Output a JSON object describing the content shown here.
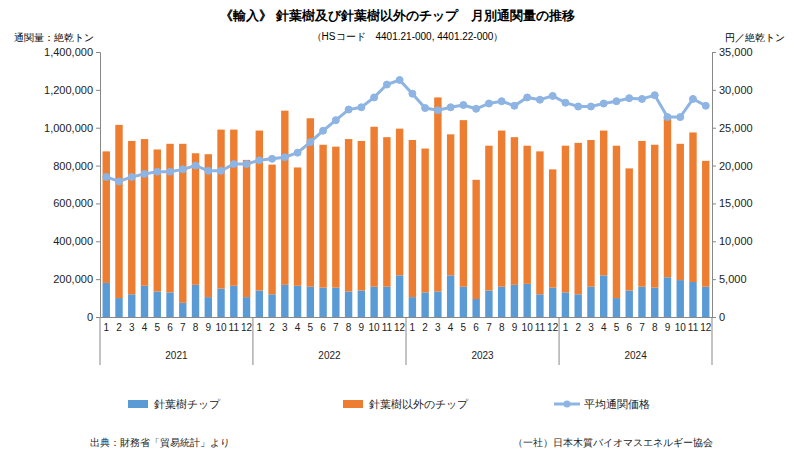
{
  "chart_data": {
    "type": "bar",
    "title": "《輸入》 針葉樹及び針葉樹以外のチップ　月別通関量の推移",
    "subtitle": "（HSコード　4401.21-000, 4401.22-000）",
    "y_label": "通関量：絶乾トン",
    "y2_label": "円／絶乾トン",
    "source": "出典：財務省「貿易統計」より",
    "publisher": "（一社）日本木質バイオマスエネルギー協会",
    "stacked": true,
    "grid": false,
    "legend": "bottom",
    "categories": [
      "1",
      "2",
      "3",
      "4",
      "5",
      "6",
      "7",
      "8",
      "9",
      "10",
      "11",
      "12",
      "1",
      "2",
      "3",
      "4",
      "5",
      "6",
      "7",
      "8",
      "9",
      "10",
      "11",
      "12",
      "1",
      "2",
      "3",
      "4",
      "5",
      "6",
      "7",
      "8",
      "9",
      "10",
      "11",
      "12",
      "1",
      "2",
      "3",
      "4",
      "5",
      "6",
      "7",
      "8",
      "9",
      "10",
      "11",
      "12"
    ],
    "years": [
      "2021",
      "2022",
      "2023",
      "2024"
    ],
    "ylim": [
      0,
      1400000
    ],
    "yticks": [
      0,
      {
        "value": 200000,
        "label": "200,000"
      },
      {
        "value": 400000,
        "label": "400,000"
      },
      {
        "value": 600000,
        "label": "600,000"
      },
      {
        "value": 800000,
        "label": "800,000"
      },
      {
        "value": 1000000,
        "label": "1,000,000"
      },
      {
        "value": 1200000,
        "label": "1,200,000"
      },
      {
        "value": 1400000,
        "label": "1,400,000"
      }
    ],
    "y2lim": [
      0,
      35000
    ],
    "y2ticks": [
      0,
      {
        "value": 5000,
        "label": "5,000"
      },
      {
        "value": 10000,
        "label": "10,000"
      },
      {
        "value": 15000,
        "label": "15,000"
      },
      {
        "value": 20000,
        "label": "20,000"
      },
      {
        "value": 25000,
        "label": "25,000"
      },
      {
        "value": 30000,
        "label": "30,000"
      },
      {
        "value": 35000,
        "label": "35,000"
      }
    ],
    "series": [
      {
        "name": "針葉樹チップ",
        "type": "bar",
        "color": "#5b9bd5",
        "values": [
          180000,
          100000,
          120000,
          165000,
          135000,
          130000,
          75000,
          170000,
          105000,
          150000,
          165000,
          105000,
          140000,
          120000,
          170000,
          165000,
          160000,
          155000,
          155000,
          135000,
          140000,
          160000,
          160000,
          220000,
          105000,
          130000,
          135000,
          220000,
          160000,
          95000,
          140000,
          160000,
          170000,
          175000,
          120000,
          155000,
          130000,
          120000,
          160000,
          220000,
          100000,
          140000,
          160000,
          155000,
          210000,
          195000,
          185000,
          160000
        ]
      },
      {
        "name": "針葉樹以外のチップ",
        "type": "bar",
        "color": "#ed7d31",
        "values": [
          695000,
          915000,
          810000,
          775000,
          750000,
          785000,
          840000,
          695000,
          755000,
          840000,
          825000,
          725000,
          845000,
          685000,
          920000,
          625000,
          890000,
          755000,
          745000,
          805000,
          790000,
          845000,
          790000,
          775000,
          830000,
          760000,
          1025000,
          745000,
          880000,
          630000,
          765000,
          825000,
          780000,
          730000,
          755000,
          625000,
          775000,
          800000,
          775000,
          765000,
          805000,
          645000,
          770000,
          755000,
          850000,
          720000,
          790000,
          665000
        ]
      },
      {
        "name": "平均通関価格",
        "type": "line",
        "axis": "y2",
        "color": "#8db4e2",
        "marker": "circle",
        "values": [
          18500,
          17900,
          18500,
          18900,
          19200,
          19200,
          19500,
          20000,
          19300,
          19300,
          20200,
          20200,
          20700,
          20900,
          21100,
          21700,
          23100,
          24600,
          26000,
          27400,
          27700,
          29000,
          30700,
          31300,
          29500,
          27600,
          27300,
          27700,
          28000,
          27500,
          28200,
          28500,
          27900,
          29000,
          28700,
          29200,
          28300,
          27800,
          27800,
          28200,
          28500,
          28900,
          28800,
          29300,
          26400,
          26400,
          28800,
          27900
        ]
      }
    ]
  }
}
